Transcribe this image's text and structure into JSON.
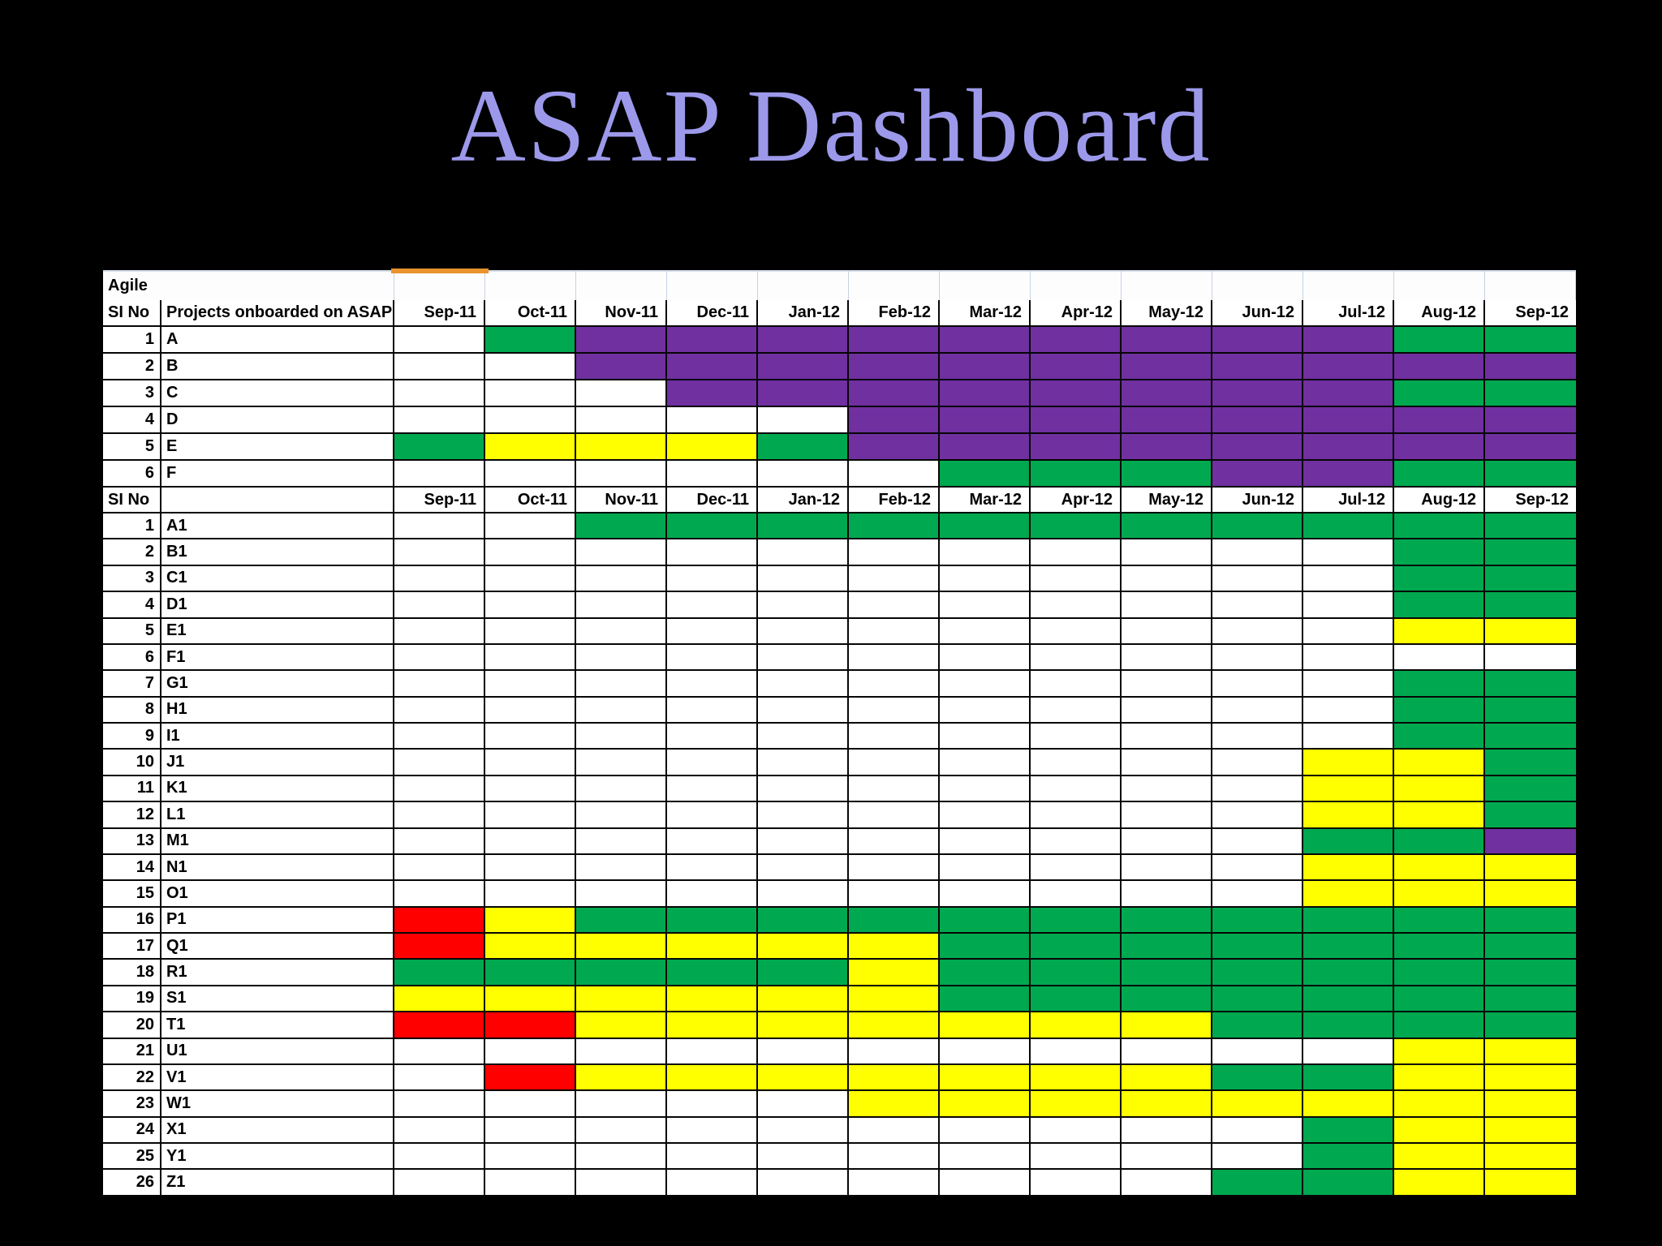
{
  "title": "ASAP Dashboard",
  "colors": {
    "title_text": "#9c99eb",
    "W": "#ffffff",
    "G": "#00a94f",
    "Y": "#ffff00",
    "R": "#ff0000",
    "P": "#7030a0",
    "accent_orange": "#e8932c"
  },
  "table": {
    "corner_label": "Agile",
    "header": {
      "si_no": "SI No",
      "projects": "Projects onboarded on ASAP"
    },
    "months": [
      "Sep-11",
      "Oct-11",
      "Nov-11",
      "Dec-11",
      "Jan-12",
      "Feb-12",
      "Mar-12",
      "Apr-12",
      "May-12",
      "Jun-12",
      "Jul-12",
      "Aug-12",
      "Sep-12"
    ],
    "section2_header": {
      "si_no": "SI No",
      "projects": ""
    },
    "section1_rows": [
      {
        "no": "1",
        "name": "A",
        "cells": "WGPPPPPPPPPGG"
      },
      {
        "no": "2",
        "name": "B",
        "cells": "WWPPPPPPPPPPP"
      },
      {
        "no": "3",
        "name": "C",
        "cells": "WWWPPPPPPPPGG"
      },
      {
        "no": "4",
        "name": "D",
        "cells": "WWWWWPPPPPPPP"
      },
      {
        "no": "5",
        "name": "E",
        "cells": "GYYYGPPPPPPPP"
      },
      {
        "no": "6",
        "name": "F",
        "cells": "WWWWWWGGGPPGG"
      }
    ],
    "section2_rows": [
      {
        "no": "1",
        "name": "A1",
        "cells": "WWGGGGGGGGGGG"
      },
      {
        "no": "2",
        "name": "B1",
        "cells": "WWWWWWWWWWWGG"
      },
      {
        "no": "3",
        "name": "C1",
        "cells": "WWWWWWWWWWWGG"
      },
      {
        "no": "4",
        "name": "D1",
        "cells": "WWWWWWWWWWWGG"
      },
      {
        "no": "5",
        "name": "E1",
        "cells": "WWWWWWWWWWWYY"
      },
      {
        "no": "6",
        "name": "F1",
        "cells": "WWWWWWWWWWWWW"
      },
      {
        "no": "7",
        "name": "G1",
        "cells": "WWWWWWWWWWWGG"
      },
      {
        "no": "8",
        "name": "H1",
        "cells": "WWWWWWWWWWWGG"
      },
      {
        "no": "9",
        "name": "I1",
        "cells": "WWWWWWWWWWWGG"
      },
      {
        "no": "10",
        "name": "J1",
        "cells": "WWWWWWWWWWYYG"
      },
      {
        "no": "11",
        "name": "K1",
        "cells": "WWWWWWWWWWYYG"
      },
      {
        "no": "12",
        "name": "L1",
        "cells": "WWWWWWWWWWYYG"
      },
      {
        "no": "13",
        "name": "M1",
        "cells": "WWWWWWWWWWGGP"
      },
      {
        "no": "14",
        "name": "N1",
        "cells": "WWWWWWWWWWYYY"
      },
      {
        "no": "15",
        "name": "O1",
        "cells": "WWWWWWWWWWYYY"
      },
      {
        "no": "16",
        "name": "P1",
        "cells": "RYGGGGGGGGGGG"
      },
      {
        "no": "17",
        "name": "Q1",
        "cells": "RYYYYYGGGGGGG"
      },
      {
        "no": "18",
        "name": "R1",
        "cells": "GGGGGYGGGGGGG"
      },
      {
        "no": "19",
        "name": "S1",
        "cells": "YYYYYYGGGGGGG"
      },
      {
        "no": "20",
        "name": "T1",
        "cells": "RRYYYYYYYGGGG"
      },
      {
        "no": "21",
        "name": "U1",
        "cells": "WWWWWWWWWWWYY"
      },
      {
        "no": "22",
        "name": "V1",
        "cells": "WRYYYYYYYGGYY"
      },
      {
        "no": "23",
        "name": "W1",
        "cells": "WWWWWYYYYYYYY"
      },
      {
        "no": "24",
        "name": "X1",
        "cells": "WWWWWWWWWWGYY"
      },
      {
        "no": "25",
        "name": "Y1",
        "cells": "WWWWWWWWWWGYY"
      },
      {
        "no": "26",
        "name": "Z1",
        "cells": "WWWWWWWWWGGYY"
      }
    ]
  }
}
